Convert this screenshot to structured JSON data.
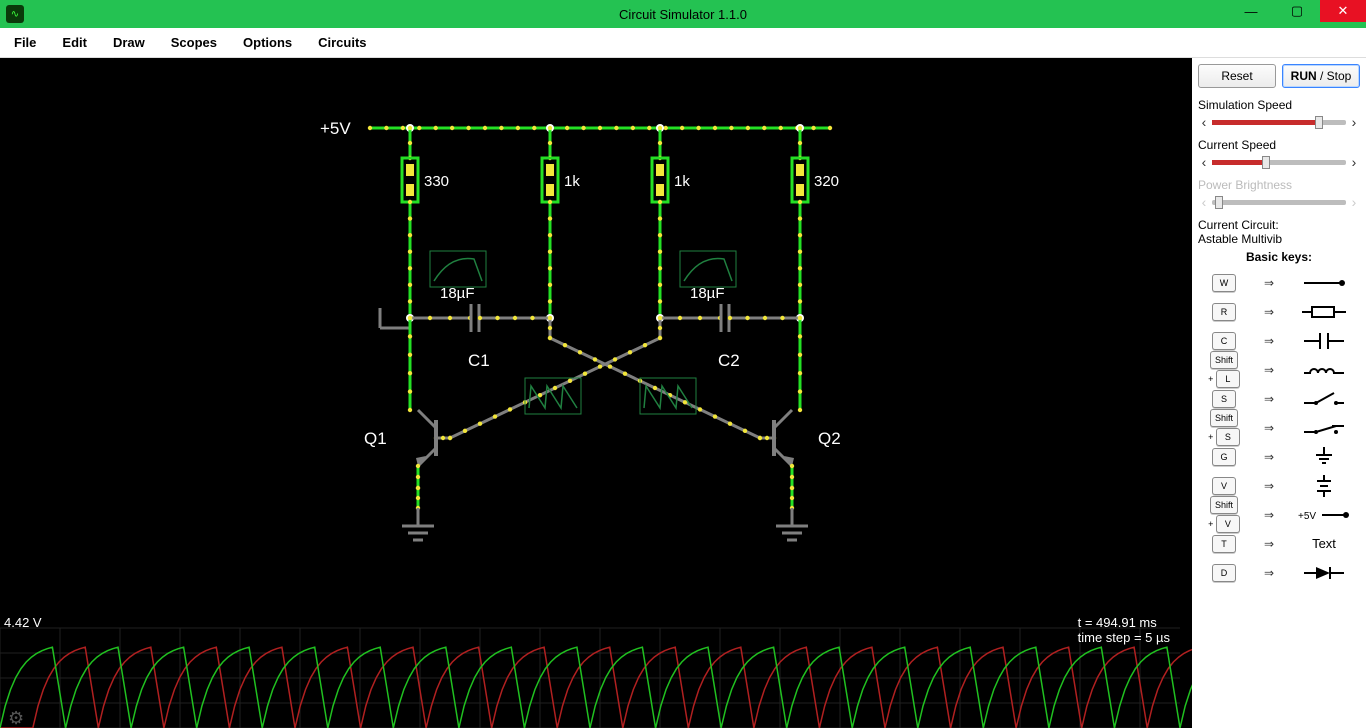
{
  "window": {
    "title": "Circuit Simulator 1.1.0"
  },
  "menu": [
    "File",
    "Edit",
    "Draw",
    "Scopes",
    "Options",
    "Circuits"
  ],
  "sim_buttons": {
    "reset": "Reset",
    "run_stop": "RUN / Stop",
    "active": "run_stop"
  },
  "sliders": [
    {
      "label": "Simulation Speed",
      "value": 0.8,
      "disabled": false
    },
    {
      "label": "Current Speed",
      "value": 0.4,
      "disabled": false
    },
    {
      "label": "Power Brightness",
      "value": 0.05,
      "disabled": true
    }
  ],
  "current_circuit_label": "Current Circuit:",
  "current_circuit_name": "Astable Multivib",
  "basic_keys_header": "Basic keys:",
  "keys": [
    {
      "caps": [
        "W"
      ],
      "symbol": "wire"
    },
    {
      "caps": [
        "R"
      ],
      "symbol": "resistor"
    },
    {
      "caps": [
        "C"
      ],
      "symbol": "capacitor"
    },
    {
      "caps": [
        "Shift",
        "+",
        "L"
      ],
      "symbol": "inductor"
    },
    {
      "caps": [
        "S"
      ],
      "symbol": "switch-open"
    },
    {
      "caps": [
        "Shift",
        "+",
        "S"
      ],
      "symbol": "switch-closed"
    },
    {
      "caps": [
        "G"
      ],
      "symbol": "ground"
    },
    {
      "caps": [
        "V"
      ],
      "symbol": "vsrc"
    },
    {
      "caps": [
        "Shift",
        "+",
        "V"
      ],
      "symbol": "v5",
      "text": "+5V"
    },
    {
      "caps": [
        "T"
      ],
      "symbol": "text",
      "text": "Text"
    },
    {
      "caps": [
        "D"
      ],
      "symbol": "diode"
    }
  ],
  "canvas": {
    "bg": "#000000",
    "wire_color": "#24e024",
    "wire_width": 3,
    "wire_dark": "#7f7f7f",
    "dot_color": "#f2e63a",
    "node_color": "#ffffff",
    "scope_mini_color": "#208040",
    "font": "16px sans-serif",
    "vlabel": "+5V",
    "components": {
      "r1": {
        "label": "330"
      },
      "r2": {
        "label": "1k"
      },
      "r3": {
        "label": "1k"
      },
      "r4": {
        "label": "320"
      },
      "c1": {
        "name": "C1",
        "label": "18µF"
      },
      "c2": {
        "name": "C2",
        "label": "18µF"
      },
      "q1": {
        "name": "Q1"
      },
      "q2": {
        "name": "Q2"
      }
    },
    "status": {
      "voltage": "4.42 V",
      "time": "t = 494.91 ms",
      "step": "time step = 5 µs"
    },
    "scope": {
      "grid_color": "#202020",
      "trace1_color": "#20c020",
      "trace2_color": "#b02020",
      "height": 100,
      "cycles": 18,
      "phase_offset": 0.5
    }
  }
}
